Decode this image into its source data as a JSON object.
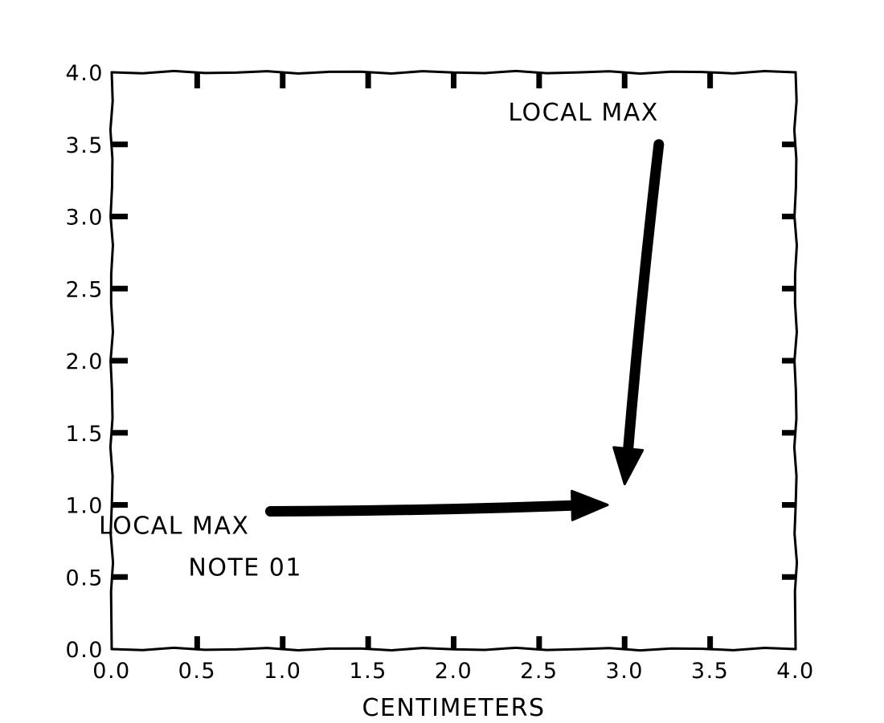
{
  "chart_data": {
    "type": "scatter",
    "title": "",
    "xlabel": "CENTIMETERS",
    "ylabel": "",
    "xlim": [
      0.0,
      4.0
    ],
    "ylim": [
      0.0,
      4.0
    ],
    "xticks": [
      "0.0",
      "0.5",
      "1.0",
      "1.5",
      "2.0",
      "2.5",
      "3.0",
      "3.5",
      "4.0"
    ],
    "yticks": [
      "0.0",
      "0.5",
      "1.0",
      "1.5",
      "2.0",
      "2.5",
      "3.0",
      "3.5",
      "4.0"
    ],
    "grid": false,
    "style": "xkcd",
    "series": [],
    "annotations": [
      {
        "text": "LOCAL MAX",
        "point": [
          3.0,
          1.0
        ],
        "text_pos": [
          3.2,
          3.5
        ]
      },
      {
        "text": "LOCAL MAX",
        "point": [
          2.9,
          1.0
        ],
        "text_pos": [
          0.9,
          1.0
        ]
      },
      {
        "text": "NOTE 01",
        "point": [
          0.8,
          0.6
        ]
      }
    ]
  }
}
